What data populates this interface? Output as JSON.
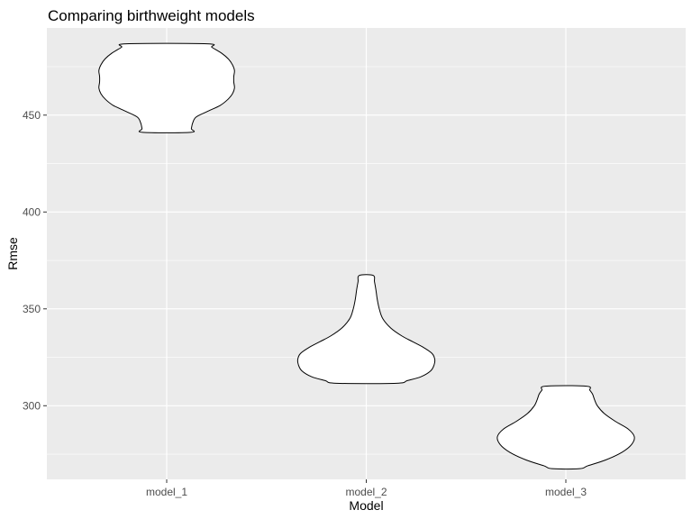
{
  "chart_data": {
    "type": "violin",
    "title": "Comparing birthweight models",
    "xlabel": "Model",
    "ylabel": "Rmse",
    "categories": [
      "model_1",
      "model_2",
      "model_3"
    ],
    "ylim": [
      262,
      495
    ],
    "yticks": [
      300,
      350,
      400,
      450
    ],
    "grid": true,
    "legend": "none",
    "colors": {
      "panel": "#EBEBEB",
      "grid_major": "#FFFFFF",
      "violin_fill": "#FFFFFF",
      "violin_outline": "#000000",
      "tick_text": "#4D4D4D"
    },
    "violins": [
      {
        "category": "model_1",
        "min": 441.1,
        "max": 486.8,
        "profile": [
          [
            441.1,
            0.35
          ],
          [
            443,
            0.36
          ],
          [
            446,
            0.38
          ],
          [
            449,
            0.43
          ],
          [
            452,
            0.6
          ],
          [
            455,
            0.78
          ],
          [
            458,
            0.89
          ],
          [
            461,
            0.96
          ],
          [
            464,
            0.99
          ],
          [
            467,
            0.98
          ],
          [
            470,
            0.98
          ],
          [
            473,
            0.99
          ],
          [
            476,
            0.96
          ],
          [
            479,
            0.9
          ],
          [
            482,
            0.8
          ],
          [
            485,
            0.66
          ],
          [
            486.8,
            0.59
          ]
        ]
      },
      {
        "category": "model_2",
        "min": 311.6,
        "max": 367.3,
        "profile": [
          [
            311.6,
            0.44
          ],
          [
            313,
            0.6
          ],
          [
            315,
            0.8
          ],
          [
            318,
            0.94
          ],
          [
            321,
            0.99
          ],
          [
            324,
            1.0
          ],
          [
            327,
            0.96
          ],
          [
            330,
            0.84
          ],
          [
            333,
            0.68
          ],
          [
            336,
            0.52
          ],
          [
            340,
            0.36
          ],
          [
            345,
            0.24
          ],
          [
            350,
            0.19
          ],
          [
            355,
            0.16
          ],
          [
            360,
            0.14
          ],
          [
            364,
            0.12
          ],
          [
            367.3,
            0.1
          ]
        ]
      },
      {
        "category": "model_3",
        "min": 267.5,
        "max": 310.1,
        "profile": [
          [
            267.5,
            0.2
          ],
          [
            269,
            0.32
          ],
          [
            272,
            0.58
          ],
          [
            276,
            0.82
          ],
          [
            280,
            0.96
          ],
          [
            284,
            1.0
          ],
          [
            288,
            0.91
          ],
          [
            292,
            0.72
          ],
          [
            296,
            0.56
          ],
          [
            300,
            0.46
          ],
          [
            303,
            0.42
          ],
          [
            306,
            0.39
          ],
          [
            308,
            0.35
          ],
          [
            310.1,
            0.3
          ]
        ]
      }
    ]
  }
}
